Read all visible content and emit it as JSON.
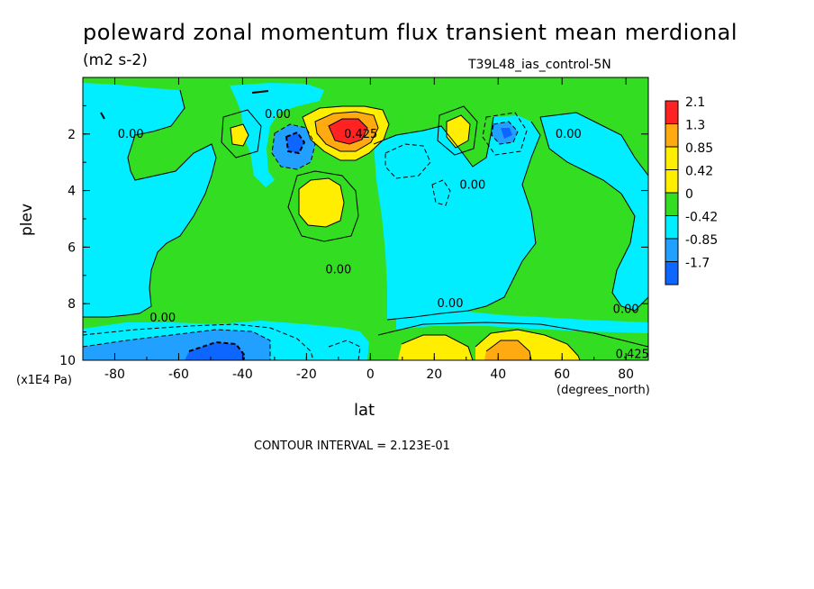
{
  "colors": {
    "green": "#33dd22",
    "cyan": "#00eeff",
    "blue_light": "#22a0ff",
    "blue": "#0d66ff",
    "yellow": "#ffee00",
    "orange": "#ffaa11",
    "red": "#ff2222"
  },
  "chart_data": {
    "type": "heatmap",
    "title": "poleward zonal momentum flux transient mean merdional",
    "units": "(m2 s-2)",
    "run_label": "T39L48_ias_control-5N",
    "xlabel": "lat",
    "x_units": "(degrees_north)",
    "ylabel": "plev",
    "y_multiplier": "(x1E4 Pa)",
    "contour_interval_text": "CONTOUR INTERVAL = 2.123E-01",
    "xlim": [
      -90,
      87
    ],
    "ylim": [
      10,
      0
    ],
    "x_ticks": [
      -80,
      -60,
      -40,
      -20,
      0,
      20,
      40,
      60,
      80
    ],
    "y_ticks": [
      2,
      4,
      6,
      8,
      10
    ],
    "legend": {
      "labels": [
        "2.1",
        "1.3",
        "0.85",
        "0.42",
        "0",
        "-0.42",
        "-0.85",
        "-1.7"
      ],
      "colors": [
        "#ff2222",
        "#ffaa11",
        "#ffee00",
        "#ffee00",
        "#33dd22",
        "#00eeff",
        "#22a0ff",
        "#0d66ff"
      ]
    },
    "contour_labels": [
      {
        "text": "0.00",
        "lat": -75,
        "plev": 2.0
      },
      {
        "text": "0.00",
        "lat": -29,
        "plev": 1.3
      },
      {
        "text": "0.425",
        "lat": -3,
        "plev": 2.0
      },
      {
        "text": "0.00",
        "lat": 62,
        "plev": 2.0
      },
      {
        "text": "0.00",
        "lat": 32,
        "plev": 3.8
      },
      {
        "text": "0.00",
        "lat": -10,
        "plev": 6.8
      },
      {
        "text": "0.00",
        "lat": 25,
        "plev": 8.0
      },
      {
        "text": "0.00",
        "lat": -65,
        "plev": 8.5
      },
      {
        "text": "0.00",
        "lat": 80,
        "plev": 8.2
      },
      {
        "text": "0.425",
        "lat": 82,
        "plev": 9.8
      }
    ],
    "features": [
      {
        "sign": "positive",
        "level": "2.1",
        "lat": -6,
        "plev": 2.0
      },
      {
        "sign": "positive",
        "level": "0.42",
        "lat": -14,
        "plev": 4.5
      },
      {
        "sign": "positive",
        "level": "0.42",
        "lat": -42,
        "plev": 2.2
      },
      {
        "sign": "positive",
        "level": "0.42",
        "lat": 29,
        "plev": 2.0
      },
      {
        "sign": "negative",
        "level": "-0.85",
        "lat": -23,
        "plev": 2.5
      },
      {
        "sign": "negative",
        "level": "-0.85",
        "lat": 45,
        "plev": 2.0
      },
      {
        "sign": "negative",
        "level": "-1.7",
        "lat": -40,
        "plev": 9.7
      },
      {
        "sign": "positive",
        "level": "1.3",
        "lat": 44,
        "plev": 9.6
      },
      {
        "sign": "positive",
        "level": "0.42",
        "lat": 17,
        "plev": 9.7
      }
    ]
  }
}
